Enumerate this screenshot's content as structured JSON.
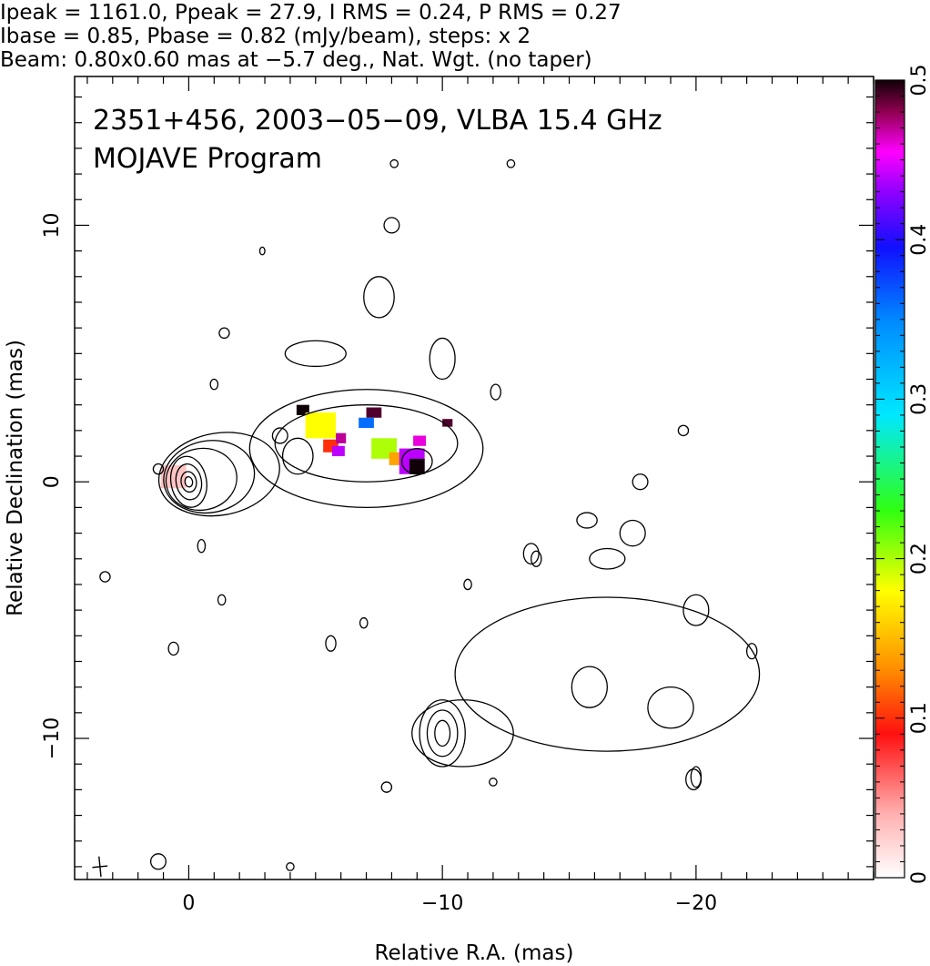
{
  "header": {
    "lines": [
      "Ipeak = 1161.0, Ppeak = 27.9, I RMS = 0.24, P RMS = 0.27",
      "Ibase = 0.85, Pbase = 0.82 (mJy/beam), steps: x 2",
      "Beam: 0.80x0.60 mas at −5.7 deg., Nat. Wgt. (no taper)"
    ]
  },
  "plot_labels": {
    "line1": "2351+456, 2003−05−09, VLBA 15.4 GHz",
    "line2": "MOJAVE Program"
  },
  "chart_data": {
    "type": "heatmap",
    "xlabel": "Relative R.A. (mas)",
    "ylabel": "Relative Declination (mas)",
    "xlim": [
      4.5,
      -27.0
    ],
    "ylim": [
      -15.5,
      15.8
    ],
    "x_ticks": [
      0,
      -10,
      -20
    ],
    "x_tick_labels": [
      "0",
      "−10",
      "−20"
    ],
    "y_ticks": [
      10,
      0,
      -10
    ],
    "y_tick_labels": [
      "10",
      "0",
      "−10"
    ],
    "colorbar": {
      "range": [
        0,
        0.5
      ],
      "ticks": [
        0,
        0.1,
        0.2,
        0.3,
        0.4,
        0.5
      ],
      "tick_labels": [
        "0",
        "0.1",
        "0.2",
        "0.3",
        "0.4",
        "0.5"
      ]
    },
    "grid": false,
    "contours": [
      {
        "x": 0,
        "y": 0,
        "rx": 0.7,
        "ry": 1.0,
        "angle": -10
      },
      {
        "x": 0,
        "y": 0,
        "rx": 0.5,
        "ry": 0.7,
        "angle": -10
      },
      {
        "x": 0,
        "y": 0,
        "rx": 0.3,
        "ry": 0.4,
        "angle": -10
      },
      {
        "x": 0,
        "y": 0,
        "rx": 0.15,
        "ry": 0.2,
        "angle": -10
      },
      {
        "x": -0.5,
        "y": 0.1,
        "rx": 1.4,
        "ry": 1.2,
        "angle": -10
      },
      {
        "x": -0.8,
        "y": 0.2,
        "rx": 1.8,
        "ry": 1.4,
        "angle": -10
      },
      {
        "x": -1.2,
        "y": 0.3,
        "rx": 2.4,
        "ry": 1.6,
        "angle": -10
      },
      {
        "x": -7.0,
        "y": 1.3,
        "rx": 4.6,
        "ry": 2.3,
        "angle": 0
      },
      {
        "x": -7.0,
        "y": 1.5,
        "rx": 3.6,
        "ry": 1.5,
        "angle": 0
      },
      {
        "x": -4.3,
        "y": 1.0,
        "rx": 0.6,
        "ry": 0.7,
        "angle": 0
      },
      {
        "x": -9.0,
        "y": 0.8,
        "rx": 0.6,
        "ry": 0.5,
        "angle": 0
      },
      {
        "x": -5.0,
        "y": 5.0,
        "rx": 1.2,
        "ry": 0.5,
        "angle": 0
      },
      {
        "x": -7.5,
        "y": 7.2,
        "rx": 0.6,
        "ry": 0.8,
        "angle": 0
      },
      {
        "x": -10.0,
        "y": 4.8,
        "rx": 0.5,
        "ry": 0.8,
        "angle": 0
      },
      {
        "x": -8.0,
        "y": 10.0,
        "rx": 0.3,
        "ry": 0.3,
        "angle": 0
      },
      {
        "x": -10.0,
        "y": -9.8,
        "rx": 0.9,
        "ry": 1.3,
        "angle": 0
      },
      {
        "x": -10.0,
        "y": -9.8,
        "rx": 0.6,
        "ry": 0.9,
        "angle": 0
      },
      {
        "x": -10.0,
        "y": -9.8,
        "rx": 0.3,
        "ry": 0.5,
        "angle": 0
      },
      {
        "x": -10.8,
        "y": -9.8,
        "rx": 2.0,
        "ry": 1.3,
        "angle": 0
      },
      {
        "x": -16.5,
        "y": -7.5,
        "rx": 6.0,
        "ry": 3.0,
        "angle": 0
      },
      {
        "x": -15.8,
        "y": -8.0,
        "rx": 0.7,
        "ry": 0.8,
        "angle": 0
      },
      {
        "x": -19.0,
        "y": -8.8,
        "rx": 0.9,
        "ry": 0.8,
        "angle": 0
      },
      {
        "x": -20.0,
        "y": -5.0,
        "rx": 0.5,
        "ry": 0.6,
        "angle": 0
      },
      {
        "x": -17.5,
        "y": -2.0,
        "rx": 0.5,
        "ry": 0.5,
        "angle": 0
      },
      {
        "x": -16.5,
        "y": -3.0,
        "rx": 0.7,
        "ry": 0.4,
        "angle": 0
      },
      {
        "x": -13.5,
        "y": -2.8,
        "rx": 0.3,
        "ry": 0.4,
        "angle": 0
      },
      {
        "x": -15.7,
        "y": -1.5,
        "rx": 0.4,
        "ry": 0.3,
        "angle": 0
      },
      {
        "x": -17.8,
        "y": 0.0,
        "rx": 0.3,
        "ry": 0.3,
        "angle": 0
      },
      {
        "x": -19.5,
        "y": 2.0,
        "rx": 0.2,
        "ry": 0.2,
        "angle": 0
      },
      {
        "x": -20.0,
        "y": -11.5,
        "rx": 0.2,
        "ry": 0.4,
        "angle": 0
      },
      {
        "x": -12.1,
        "y": 3.5,
        "rx": 0.2,
        "ry": 0.3,
        "angle": 0
      },
      {
        "x": -3.6,
        "y": 1.8,
        "rx": 0.3,
        "ry": 0.3,
        "angle": 0
      },
      {
        "x": 1.2,
        "y": 0.5,
        "rx": 0.2,
        "ry": 0.2,
        "angle": 0
      },
      {
        "x": -1.0,
        "y": 3.8,
        "rx": 0.15,
        "ry": 0.2,
        "angle": 0
      },
      {
        "x": -1.4,
        "y": 5.8,
        "rx": 0.2,
        "ry": 0.2,
        "angle": 0
      },
      {
        "x": -2.9,
        "y": 9.0,
        "rx": 0.1,
        "ry": 0.15,
        "angle": 0
      },
      {
        "x": -5.6,
        "y": -6.3,
        "rx": 0.2,
        "ry": 0.3,
        "angle": 0
      },
      {
        "x": -6.9,
        "y": -5.5,
        "rx": 0.15,
        "ry": 0.2,
        "angle": 0
      },
      {
        "x": 1.2,
        "y": -14.8,
        "rx": 0.3,
        "ry": 0.3,
        "angle": 0
      },
      {
        "x": 3.3,
        "y": -3.7,
        "rx": 0.2,
        "ry": 0.2,
        "angle": 0
      },
      {
        "x": -0.5,
        "y": -2.5,
        "rx": 0.15,
        "ry": 0.25,
        "angle": 0
      },
      {
        "x": -1.3,
        "y": -4.6,
        "rx": 0.15,
        "ry": 0.2,
        "angle": 0
      },
      {
        "x": 0.6,
        "y": -6.5,
        "rx": 0.2,
        "ry": 0.25,
        "angle": 0
      },
      {
        "x": -4.0,
        "y": -15.0,
        "rx": 0.15,
        "ry": 0.15,
        "angle": 0
      },
      {
        "x": -11.0,
        "y": -4.0,
        "rx": 0.15,
        "ry": 0.2,
        "angle": 0
      },
      {
        "x": -12.0,
        "y": -11.7,
        "rx": 0.15,
        "ry": 0.15,
        "angle": 0
      },
      {
        "x": -13.7,
        "y": -3.0,
        "rx": 0.2,
        "ry": 0.3,
        "angle": 0
      },
      {
        "x": -22.2,
        "y": -6.6,
        "rx": 0.2,
        "ry": 0.3,
        "angle": 0
      },
      {
        "x": -19.9,
        "y": -11.6,
        "rx": 0.3,
        "ry": 0.4,
        "angle": 0
      },
      {
        "x": -7.8,
        "y": -11.9,
        "rx": 0.2,
        "ry": 0.2,
        "angle": 0
      },
      {
        "x": -8.1,
        "y": 12.4,
        "rx": 0.15,
        "ry": 0.15,
        "angle": 0
      },
      {
        "x": -12.7,
        "y": 12.4,
        "rx": 0.15,
        "ry": 0.15,
        "angle": 0
      }
    ],
    "pol_pixels": [
      {
        "x": 0.6,
        "y": 0.2,
        "w": 1.0,
        "h": 0.9,
        "v": 0.03
      },
      {
        "x": -4.5,
        "y": 2.8,
        "w": 0.5,
        "h": 0.4,
        "v": 0.5
      },
      {
        "x": -5.2,
        "y": 2.2,
        "w": 1.2,
        "h": 1.0,
        "v": 0.18
      },
      {
        "x": -5.6,
        "y": 1.4,
        "w": 0.6,
        "h": 0.5,
        "v": 0.1
      },
      {
        "x": -5.9,
        "y": 1.2,
        "w": 0.5,
        "h": 0.4,
        "v": 0.44
      },
      {
        "x": -6.0,
        "y": 1.7,
        "w": 0.4,
        "h": 0.4,
        "v": 0.47
      },
      {
        "x": -7.3,
        "y": 2.7,
        "w": 0.6,
        "h": 0.4,
        "v": 0.49
      },
      {
        "x": -7.0,
        "y": 2.3,
        "w": 0.6,
        "h": 0.4,
        "v": 0.36
      },
      {
        "x": -7.7,
        "y": 1.3,
        "w": 1.0,
        "h": 0.8,
        "v": 0.2
      },
      {
        "x": -8.2,
        "y": 0.9,
        "w": 0.6,
        "h": 0.5,
        "v": 0.14
      },
      {
        "x": -8.8,
        "y": 0.8,
        "w": 1.0,
        "h": 1.0,
        "v": 0.44
      },
      {
        "x": -9.0,
        "y": 0.6,
        "w": 0.6,
        "h": 0.6,
        "v": 0.5
      },
      {
        "x": -9.1,
        "y": 1.6,
        "w": 0.5,
        "h": 0.4,
        "v": 0.46
      },
      {
        "x": -10.2,
        "y": 2.3,
        "w": 0.4,
        "h": 0.3,
        "v": 0.49
      }
    ],
    "beam": {
      "x": 3.5,
      "y": -15.0,
      "major": 0.8,
      "minor": 0.6,
      "pa": -5.7
    }
  }
}
